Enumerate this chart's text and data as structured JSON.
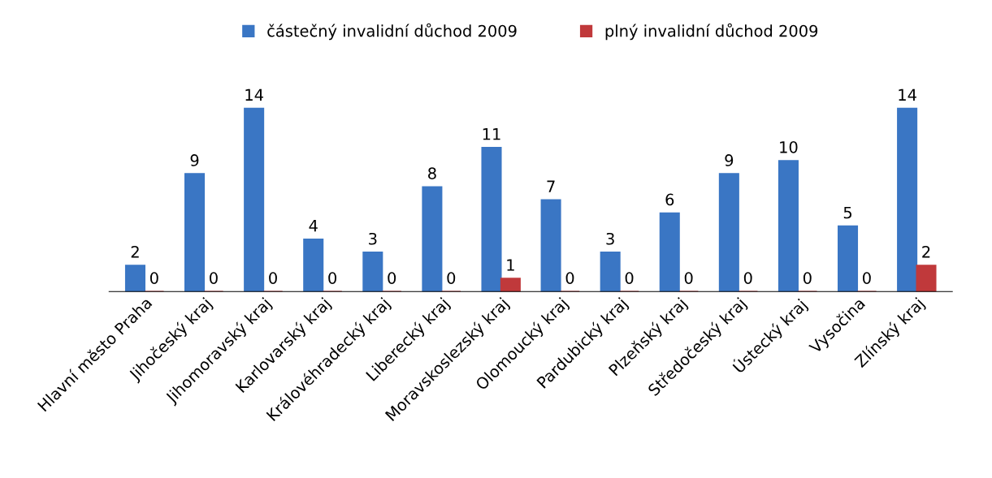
{
  "chart_data": {
    "type": "bar",
    "categories": [
      "Hlavní město Praha",
      "Jihočeský kraj",
      "Jihomoravský kraj",
      "Karlovarský kraj",
      "Královéhradecký kraj",
      "Liberecký kraj",
      "Moravskoslezský kraj",
      "Olomoucký kraj",
      "Pardubický kraj",
      "Plzeňský kraj",
      "Středočeský kraj",
      "Ústecký kraj",
      "Vysočina",
      "Zlínský kraj"
    ],
    "series": [
      {
        "name": "částečný invalidní důchod 2009",
        "color": "#3a76c4",
        "values": [
          2,
          9,
          14,
          4,
          3,
          8,
          11,
          7,
          3,
          6,
          9,
          10,
          5,
          14
        ]
      },
      {
        "name": "plný invalidní důchod 2009",
        "color": "#c0393b",
        "values": [
          0,
          0,
          0,
          0,
          0,
          0,
          1,
          0,
          0,
          0,
          0,
          0,
          0,
          2
        ]
      }
    ],
    "data_labels": true,
    "legend": "top",
    "grid": false
  }
}
